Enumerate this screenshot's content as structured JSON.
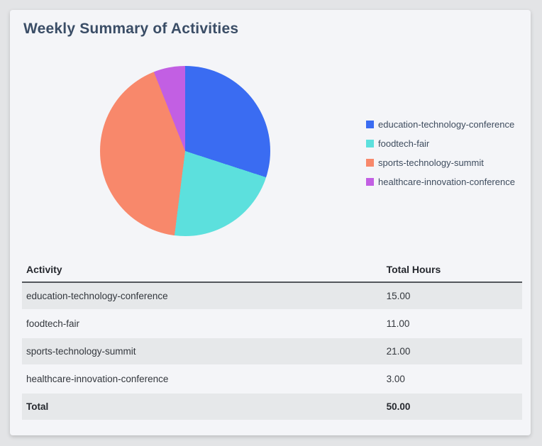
{
  "card": {
    "title": "Weekly Summary of Activities"
  },
  "chart_data": {
    "type": "pie",
    "title": "Weekly Summary of Activities",
    "labels": [
      "education-technology-conference",
      "foodtech-fair",
      "sports-technology-summit",
      "healthcare-innovation-conference"
    ],
    "values": [
      15,
      11,
      21,
      3
    ],
    "colors": [
      "#3a6cf2",
      "#5ce0dd",
      "#f8886b",
      "#c25fe3"
    ],
    "total": 50,
    "legend_position": "right",
    "start_angle_deg": 0,
    "direction": "clockwise"
  },
  "table": {
    "headers": [
      "Activity",
      "Total Hours"
    ],
    "rows": [
      {
        "activity": "education-technology-conference",
        "hours": "15.00"
      },
      {
        "activity": "foodtech-fair",
        "hours": "11.00"
      },
      {
        "activity": "sports-technology-summit",
        "hours": "21.00"
      },
      {
        "activity": "healthcare-innovation-conference",
        "hours": "3.00"
      }
    ],
    "total": {
      "label": "Total",
      "value": "50.00"
    }
  }
}
